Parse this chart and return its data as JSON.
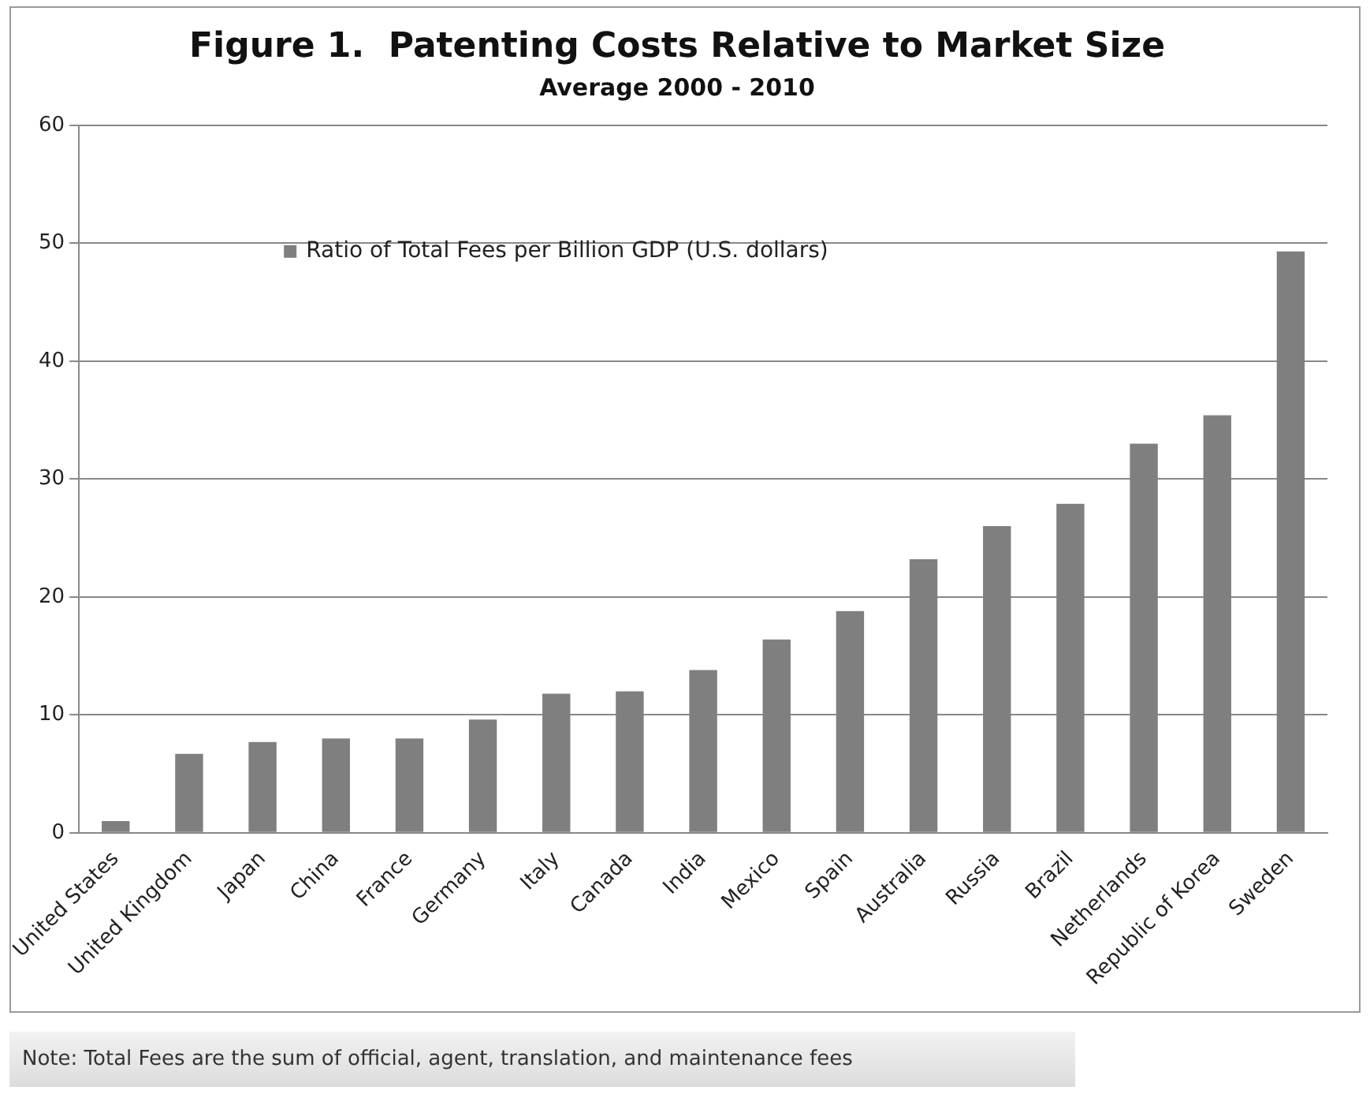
{
  "chart_data": {
    "type": "bar",
    "title": "Figure 1.  Patenting Costs Relative to Market Size",
    "subtitle": "Average 2000 - 2010",
    "categories": [
      "United States",
      "United Kingdom",
      "Japan",
      "China",
      "France",
      "Germany",
      "Italy",
      "Canada",
      "India",
      "Mexico",
      "Spain",
      "Australia",
      "Russia",
      "Brazil",
      "Netherlands",
      "Republic of Korea",
      "Sweden"
    ],
    "series": [
      {
        "name": "Ratio of Total Fees per Billion GDP (U.S. dollars)",
        "color": "#7f7f7f",
        "values": [
          1,
          6.7,
          7.7,
          8,
          8,
          9.6,
          11.8,
          12,
          13.8,
          16.4,
          18.8,
          23.2,
          26,
          27.9,
          33,
          35.4,
          49.3
        ]
      }
    ],
    "ylim": [
      0,
      60
    ],
    "yticks": [
      0,
      10,
      20,
      30,
      40,
      50,
      60
    ],
    "grid": "y",
    "legend": "top left",
    "annotations": [
      "Note:  Total Fees are the sum of official, agent, translation, and maintenance fees"
    ]
  }
}
